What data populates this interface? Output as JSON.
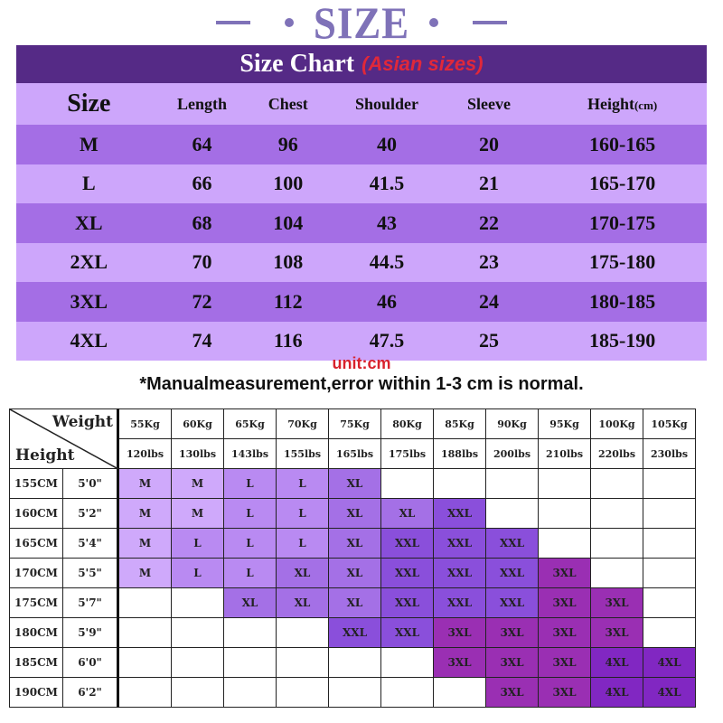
{
  "banner": {
    "title": "SIZE"
  },
  "size_chart": {
    "title": "Size Chart",
    "subtitle": "(Asian sizes)",
    "headers": {
      "size": "Size",
      "length": "Length",
      "chest": "Chest",
      "shoulder": "Shoulder",
      "sleeve": "Sleeve",
      "height": "Height",
      "height_unit": "(cm)"
    },
    "rows": [
      {
        "size": "M",
        "length": "64",
        "chest": "96",
        "shoulder": "40",
        "sleeve": "20",
        "height": "160-165"
      },
      {
        "size": "L",
        "length": "66",
        "chest": "100",
        "shoulder": "41.5",
        "sleeve": "21",
        "height": "165-170"
      },
      {
        "size": "XL",
        "length": "68",
        "chest": "104",
        "shoulder": "43",
        "sleeve": "22",
        "height": "170-175"
      },
      {
        "size": "2XL",
        "length": "70",
        "chest": "108",
        "shoulder": "44.5",
        "sleeve": "23",
        "height": "175-180"
      },
      {
        "size": "3XL",
        "length": "72",
        "chest": "112",
        "shoulder": "46",
        "sleeve": "24",
        "height": "180-185"
      },
      {
        "size": "4XL",
        "length": "74",
        "chest": "116",
        "shoulder": "47.5",
        "sleeve": "25",
        "height": "185-190"
      }
    ],
    "unit": "unit:cm",
    "note": "*Manualmeasurement,error within 1-3 cm is normal."
  },
  "fit_grid": {
    "corner": {
      "weight": "Weight",
      "height": "Height"
    },
    "weights_kg": [
      "55Kg",
      "60Kg",
      "65Kg",
      "70Kg",
      "75Kg",
      "80Kg",
      "85Kg",
      "90Kg",
      "95Kg",
      "100Kg",
      "105Kg"
    ],
    "weights_lbs": [
      "120lbs",
      "130lbs",
      "143lbs",
      "155lbs",
      "165lbs",
      "175lbs",
      "188lbs",
      "200lbs",
      "210lbs",
      "220lbs",
      "230lbs"
    ],
    "rows": [
      {
        "cm": "155CM",
        "ft": "5'0\"",
        "cells": [
          "M",
          "M",
          "L",
          "L",
          "XL",
          "",
          "",
          "",
          "",
          "",
          ""
        ]
      },
      {
        "cm": "160CM",
        "ft": "5'2\"",
        "cells": [
          "M",
          "M",
          "L",
          "L",
          "XL",
          "XL",
          "XXL",
          "",
          "",
          "",
          ""
        ]
      },
      {
        "cm": "165CM",
        "ft": "5'4\"",
        "cells": [
          "M",
          "L",
          "L",
          "L",
          "XL",
          "XXL",
          "XXL",
          "XXL",
          "",
          "",
          ""
        ]
      },
      {
        "cm": "170CM",
        "ft": "5'5\"",
        "cells": [
          "M",
          "L",
          "L",
          "XL",
          "XL",
          "XXL",
          "XXL",
          "XXL",
          "3XL",
          "",
          ""
        ]
      },
      {
        "cm": "175CM",
        "ft": "5'7\"",
        "cells": [
          "",
          "",
          "XL",
          "XL",
          "XL",
          "XXL",
          "XXL",
          "XXL",
          "3XL",
          "3XL",
          ""
        ]
      },
      {
        "cm": "180CM",
        "ft": "5'9\"",
        "cells": [
          "",
          "",
          "",
          "",
          "XXL",
          "XXL",
          "3XL",
          "3XL",
          "3XL",
          "3XL",
          ""
        ]
      },
      {
        "cm": "185CM",
        "ft": "6'0\"",
        "cells": [
          "",
          "",
          "",
          "",
          "",
          "",
          "3XL",
          "3XL",
          "3XL",
          "4XL",
          "4XL"
        ]
      },
      {
        "cm": "190CM",
        "ft": "6'2\"",
        "cells": [
          "",
          "",
          "",
          "",
          "",
          "",
          "",
          "3XL",
          "3XL",
          "4XL",
          "4XL"
        ]
      }
    ],
    "colors": {
      "M": "#cfa9fb",
      "L": "#b98af2",
      "XL": "#a470e6",
      "XXL": "#8a4fdb",
      "3XL": "#9a2fb3",
      "4XL": "#8127c2"
    }
  }
}
